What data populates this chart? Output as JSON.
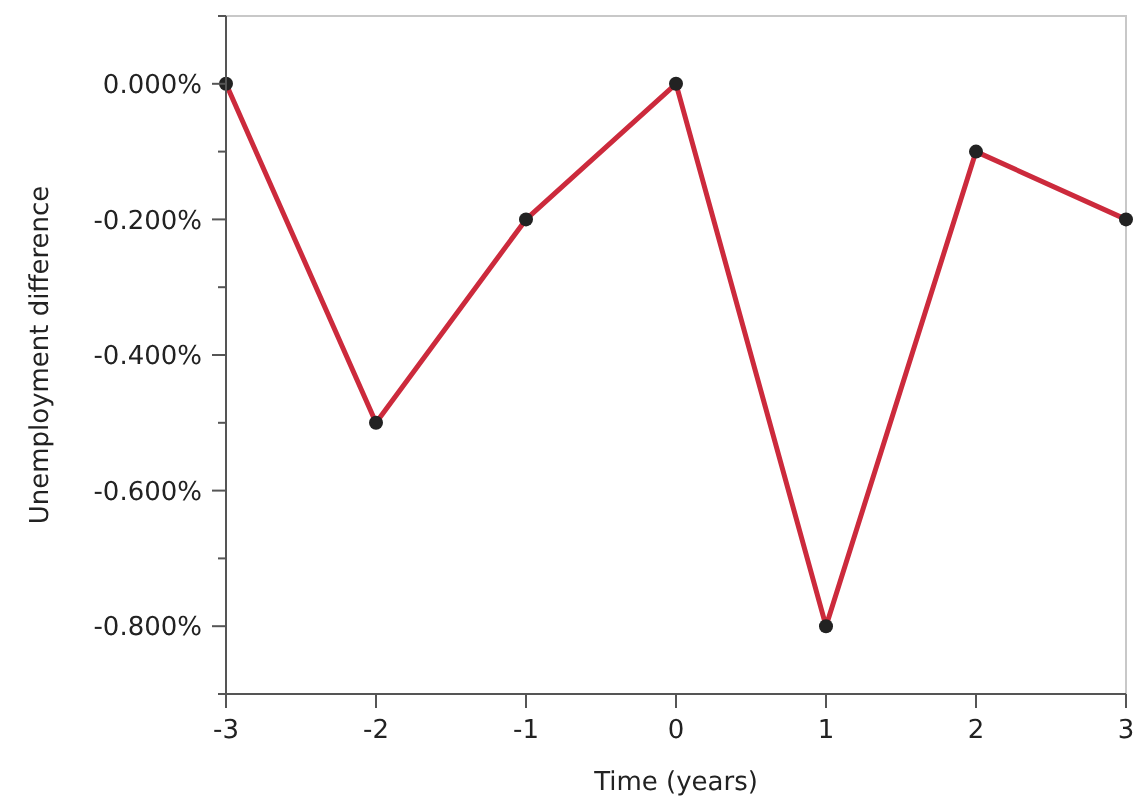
{
  "chart_data": {
    "type": "line",
    "xlabel": "Time (years)",
    "ylabel": "Unemployment difference",
    "x": [
      -3,
      -2,
      -1,
      0,
      1,
      2,
      3
    ],
    "series": [
      {
        "color": "#cc2a3c",
        "values": [
          0,
          -0.5,
          -0.2,
          0,
          -0.8,
          -0.1,
          -0.2
        ]
      }
    ],
    "xlim": [
      -3,
      3
    ],
    "xticks": [
      {
        "value": -3,
        "label": "-3"
      },
      {
        "value": -2,
        "label": "-2"
      },
      {
        "value": -1,
        "label": "-1"
      },
      0,
      1,
      2,
      3
    ],
    "ylim": [
      -0.9,
      0.1
    ],
    "yticks": [
      {
        "value": 0,
        "label": "0.000%"
      },
      {
        "value": -0.1,
        "label": null
      },
      {
        "value": -0.2,
        "label": "-0.200%"
      },
      {
        "value": -0.3,
        "label": null
      },
      {
        "value": -0.4,
        "label": "-0.400%"
      },
      {
        "value": -0.5,
        "label": null
      },
      {
        "value": -0.6,
        "label": "-0.600%"
      },
      {
        "value": -0.7,
        "label": null
      },
      {
        "value": -0.8,
        "label": "-0.800%"
      },
      {
        "value": -0.9,
        "label": null
      },
      {
        "value": 0.1,
        "label": null
      }
    ],
    "marker": "circle",
    "line_style": "solid"
  }
}
